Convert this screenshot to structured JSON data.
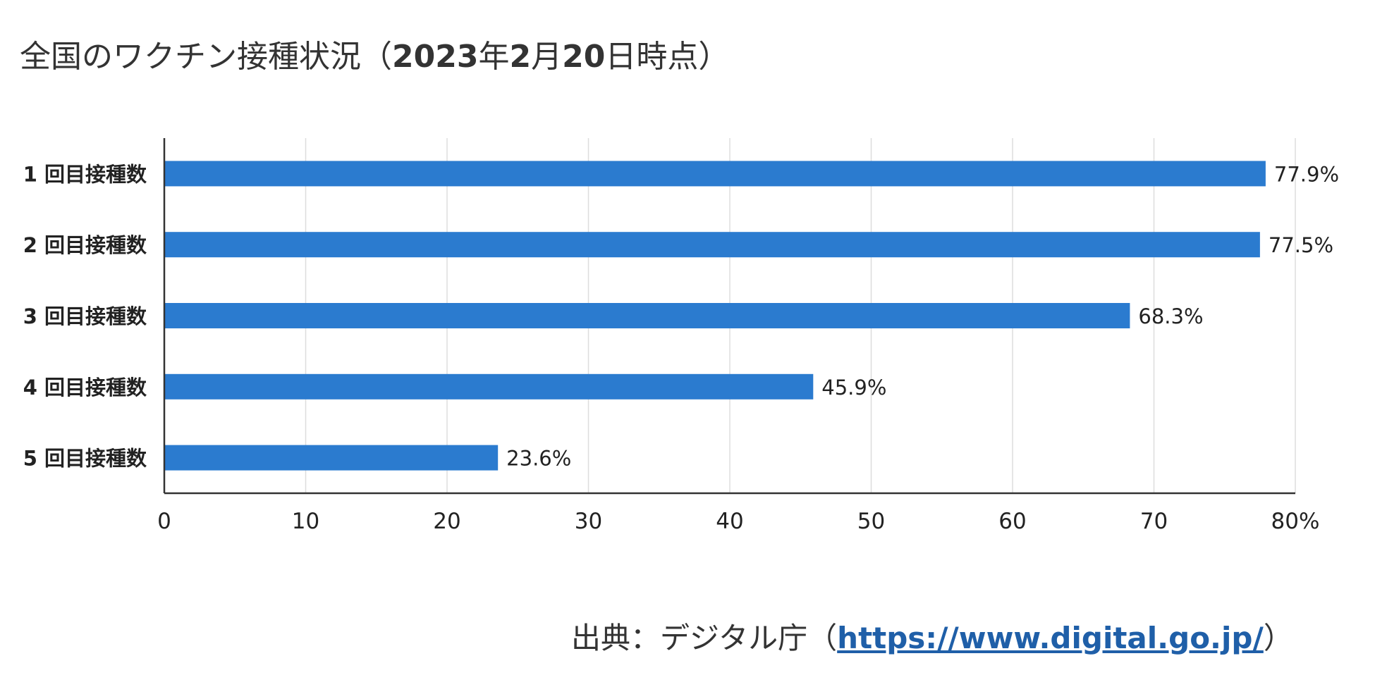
{
  "title": {
    "prefix": "全国のワクチン接種状況（",
    "year": "2023",
    "year_suffix": "年",
    "month": "2",
    "month_suffix": "月",
    "day": "20",
    "suffix": "日時点）"
  },
  "source": {
    "prefix": "出典：デジタル庁（",
    "link_text": "https://www.digital.go.jp/",
    "suffix": "）"
  },
  "chart_data": {
    "type": "bar",
    "orientation": "horizontal",
    "categories": [
      "1回目接種数",
      "2回目接種数",
      "3回目接種数",
      "4回目接種数",
      "5回目接種数"
    ],
    "category_labels": [
      "1 回目接種数",
      "2 回目接種数",
      "3 回目接種数",
      "4 回目接種数",
      "5 回目接種数"
    ],
    "values": [
      77.9,
      77.5,
      68.3,
      45.9,
      23.6
    ],
    "data_labels": [
      "77.9%",
      "77.5%",
      "68.3%",
      "45.9%",
      "23.6%"
    ],
    "xlim": [
      0,
      80
    ],
    "xticks": [
      0,
      10,
      20,
      30,
      40,
      50,
      60,
      70,
      80
    ],
    "xtick_labels": [
      "0",
      "10",
      "20",
      "30",
      "40",
      "50",
      "60",
      "70",
      "80%"
    ],
    "grid": true,
    "bar_color": "#2b7bcf"
  }
}
